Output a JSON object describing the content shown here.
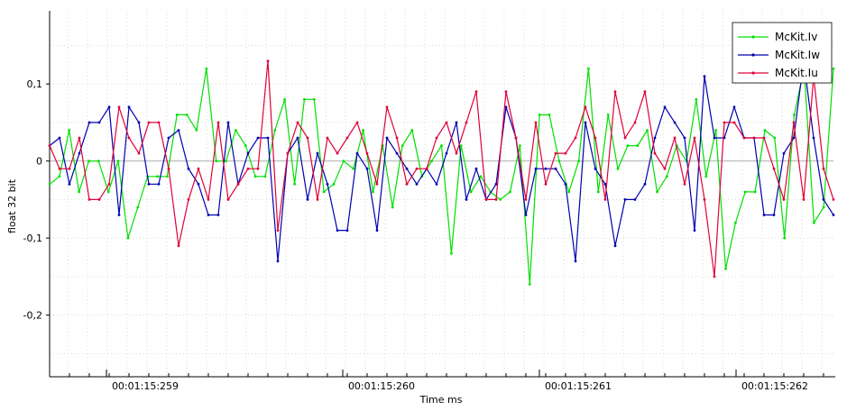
{
  "chart_data": {
    "type": "line",
    "xlabel": "Time ms",
    "ylabel": "float 32 bit",
    "x_ticks": [
      "00:01:15:259",
      "00:01:15:260",
      "00:01:15:261",
      "00:01:15:262"
    ],
    "y_ticks": [
      "0,1",
      "0",
      "-0,1",
      "-0,2"
    ],
    "y_tick_values": [
      0.1,
      0,
      -0.1,
      -0.2
    ],
    "ylim": [
      -0.28,
      0.195
    ],
    "x_index_range": [
      0,
      100
    ],
    "grid": true,
    "legend_position": "top-right",
    "series": [
      {
        "name": "McKit.Iv",
        "color": "#00e000",
        "values": [
          -0.03,
          -0.02,
          0.04,
          -0.04,
          0.0,
          0.0,
          -0.04,
          0.0,
          -0.1,
          -0.06,
          -0.02,
          -0.02,
          -0.02,
          0.06,
          0.06,
          0.04,
          0.12,
          0.0,
          0.0,
          0.04,
          0.02,
          -0.02,
          -0.02,
          0.04,
          0.08,
          -0.03,
          0.08,
          0.08,
          -0.04,
          -0.03,
          0.0,
          -0.01,
          0.04,
          -0.04,
          0.02,
          -0.06,
          0.02,
          0.04,
          -0.02,
          0.0,
          0.02,
          -0.12,
          0.02,
          -0.04,
          -0.02,
          -0.04,
          -0.05,
          -0.04,
          0.02,
          -0.16,
          0.06,
          0.06,
          0.0,
          -0.04,
          0.0,
          0.12,
          -0.04,
          0.06,
          -0.01,
          0.02,
          0.02,
          0.04,
          -0.04,
          -0.02,
          0.02,
          0.0,
          0.08,
          -0.02,
          0.04,
          -0.14,
          -0.08,
          -0.04,
          -0.04,
          0.04,
          0.03,
          -0.1,
          0.06,
          0.12,
          -0.08,
          -0.06,
          0.12
        ]
      },
      {
        "name": "McKit.Iw",
        "color": "#0000b0",
        "values": [
          0.02,
          0.03,
          -0.03,
          0.01,
          0.05,
          0.05,
          0.07,
          -0.07,
          0.07,
          0.05,
          -0.03,
          -0.03,
          0.03,
          0.04,
          -0.01,
          -0.03,
          -0.07,
          -0.07,
          0.05,
          -0.03,
          0.01,
          0.03,
          0.03,
          -0.13,
          0.01,
          0.03,
          -0.05,
          0.01,
          -0.03,
          -0.09,
          -0.09,
          0.01,
          -0.01,
          -0.09,
          0.03,
          0.01,
          -0.01,
          -0.03,
          -0.01,
          -0.03,
          0.01,
          0.05,
          -0.05,
          -0.01,
          -0.05,
          -0.03,
          0.07,
          0.03,
          -0.07,
          -0.01,
          -0.01,
          -0.01,
          -0.03,
          -0.13,
          0.05,
          -0.01,
          -0.03,
          -0.11,
          -0.05,
          -0.05,
          -0.03,
          0.03,
          0.07,
          0.05,
          0.03,
          -0.09,
          0.11,
          0.03,
          0.03,
          0.07,
          0.03,
          0.03,
          -0.07,
          -0.07,
          0.01,
          0.03,
          0.13,
          0.03,
          -0.05,
          -0.07
        ]
      },
      {
        "name": "McKit.Iu",
        "color": "#e0003a",
        "values": [
          0.02,
          -0.01,
          -0.01,
          0.03,
          -0.05,
          -0.05,
          -0.03,
          0.07,
          0.03,
          0.01,
          0.05,
          0.05,
          -0.01,
          -0.11,
          -0.05,
          -0.01,
          -0.05,
          0.05,
          -0.05,
          -0.03,
          -0.01,
          -0.01,
          0.13,
          -0.09,
          0.01,
          0.05,
          0.03,
          -0.05,
          0.03,
          0.01,
          0.03,
          0.05,
          0.01,
          -0.03,
          0.07,
          0.03,
          -0.03,
          -0.01,
          -0.01,
          0.03,
          0.05,
          0.01,
          0.05,
          0.09,
          -0.05,
          -0.05,
          0.09,
          0.03,
          -0.05,
          0.05,
          -0.03,
          0.01,
          0.01,
          0.03,
          0.07,
          0.03,
          -0.05,
          0.09,
          0.03,
          0.05,
          0.09,
          0.01,
          -0.01,
          0.03,
          -0.03,
          0.03,
          -0.05,
          -0.15,
          0.05,
          0.05,
          0.03,
          0.03,
          0.03,
          -0.01,
          -0.05,
          0.05,
          -0.05,
          0.11,
          -0.01,
          -0.05
        ]
      }
    ]
  }
}
